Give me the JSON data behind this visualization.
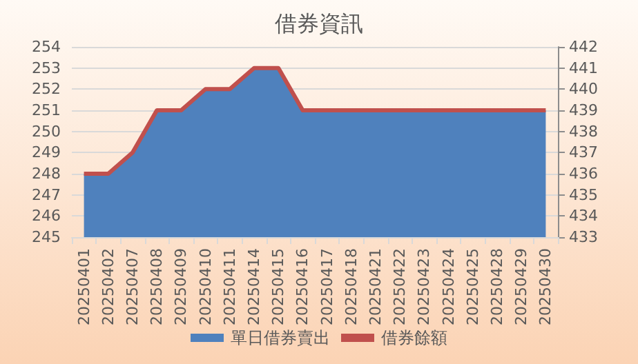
{
  "chart_data": {
    "type": "area",
    "title": "借券資訊",
    "categories": [
      "20250401",
      "20250402",
      "20250407",
      "20250408",
      "20250409",
      "20250410",
      "20250411",
      "20250414",
      "20250415",
      "20250416",
      "20250417",
      "20250418",
      "20250421",
      "20250422",
      "20250423",
      "20250424",
      "20250425",
      "20250428",
      "20250429",
      "20250430"
    ],
    "series": [
      {
        "name": "單日借券賣出",
        "color": "#4f81bd",
        "values": [
          248,
          248,
          249,
          251,
          251,
          252,
          252,
          253,
          253,
          251,
          251,
          251,
          251,
          251,
          251,
          251,
          251,
          251,
          251,
          251
        ]
      },
      {
        "name": "借券餘額",
        "type": "line",
        "axis": "y2",
        "color": "#c0504d",
        "values": [
          436,
          436,
          437,
          439,
          439,
          440,
          440,
          441,
          441,
          439,
          439,
          439,
          439,
          439,
          439,
          439,
          439,
          439,
          439,
          439
        ]
      }
    ],
    "ylim": [
      245,
      254
    ],
    "yticks": [
      245,
      246,
      247,
      248,
      249,
      250,
      251,
      252,
      253,
      254
    ],
    "y2lim": [
      433,
      442
    ],
    "y2ticks": [
      433,
      434,
      435,
      436,
      437,
      438,
      439,
      440,
      441,
      442
    ],
    "grid": "y",
    "legend": "bottom",
    "marker": "none"
  }
}
